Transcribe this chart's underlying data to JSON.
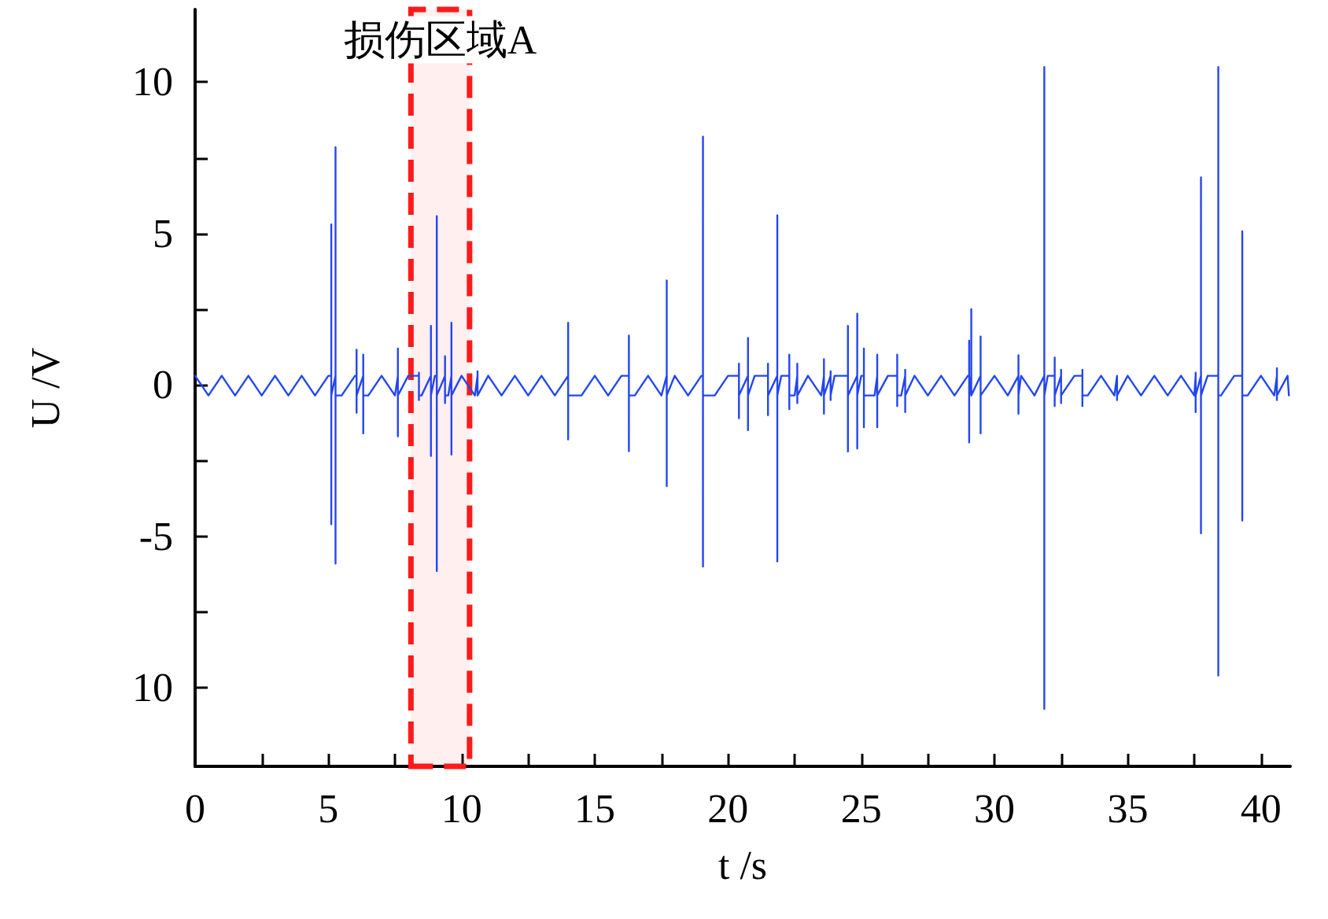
{
  "chart_data": {
    "type": "line",
    "xlabel": "t /s",
    "ylabel": "U /V",
    "x": [
      0,
      0.5,
      1,
      1.5,
      2,
      2.5,
      3,
      3.5,
      4,
      4.5,
      5,
      5.11,
      5.11,
      5.11,
      5.11,
      5.27,
      5.27,
      5.27,
      5.27,
      5.5,
      6,
      6.06,
      6.06,
      6.06,
      6.06,
      6.31,
      6.31,
      6.31,
      6.31,
      6.5,
      7,
      7.5,
      7.61,
      7.61,
      7.61,
      7.61,
      8,
      8.4,
      8.4,
      8.4,
      8.4,
      8.5,
      8.85,
      8.85,
      8.85,
      8.85,
      9,
      9.07,
      9.07,
      9.07,
      9.07,
      9.38,
      9.38,
      9.38,
      9.38,
      9.5,
      9.62,
      9.62,
      9.62,
      9.62,
      10,
      10.5,
      10.6,
      10.6,
      10.6,
      11,
      11.5,
      12,
      12.5,
      13,
      13.5,
      14,
      14,
      14,
      14,
      14.5,
      15,
      15.5,
      16,
      16.28,
      16.28,
      16.28,
      16.28,
      16.5,
      17,
      17.5,
      17.7,
      17.7,
      17.7,
      17.7,
      18,
      18.5,
      19,
      19.06,
      19.06,
      19.06,
      19.06,
      19.5,
      20,
      20.41,
      20.41,
      20.41,
      20.41,
      20.75,
      20.75,
      20.75,
      20.75,
      21,
      21.5,
      21.5,
      21.5,
      21.5,
      21.85,
      21.85,
      21.85,
      21.85,
      22,
      22.3,
      22.3,
      22.3,
      22.3,
      22.5,
      22.6,
      22.6,
      22.6,
      22.6,
      23,
      23.5,
      23.6,
      23.6,
      23.6,
      23.6,
      23.85,
      23.85,
      23.85,
      23.85,
      24,
      24.5,
      24.5,
      24.5,
      24.5,
      24.85,
      24.85,
      24.85,
      24.85,
      25,
      25.1,
      25.1,
      25.1,
      25.1,
      25.5,
      25.6,
      25.6,
      25.6,
      25.6,
      26,
      26.35,
      26.35,
      26.35,
      26.35,
      26.5,
      26.65,
      26.65,
      26.65,
      26.65,
      27,
      27.5,
      28,
      28.5,
      29,
      29.05,
      29.05,
      29.05,
      29.05,
      29.13,
      29.13,
      29.13,
      29.48,
      29.48,
      29.48,
      29.48,
      29.5,
      30,
      30.5,
      30.9,
      30.9,
      30.9,
      30.9,
      31,
      31.5,
      31.87,
      31.87,
      31.87,
      31.87,
      32,
      32.26,
      32.26,
      32.26,
      32.26,
      32.5,
      32.5,
      32.5,
      32.5,
      33,
      33.3,
      33.3,
      33.3,
      33.3,
      33.5,
      34,
      34.5,
      34.6,
      34.6,
      34.6,
      35,
      35.5,
      36,
      36.5,
      37,
      37.5,
      37.55,
      37.55,
      37.55,
      37.55,
      37.75,
      37.75,
      37.75,
      37.75,
      38,
      38.4,
      38.4,
      38.4,
      38.4,
      38.5,
      39,
      39.3,
      39.3,
      39.3,
      39.3,
      39.5,
      40,
      40.5,
      40.6,
      40.6,
      40.6,
      40.6,
      41,
      41.05
    ],
    "series": [
      {
        "color": "#2346f0",
        "values": [
          0.3,
          -0.35,
          0.3,
          -0.35,
          0.3,
          -0.35,
          0.3,
          -0.35,
          0.3,
          -0.35,
          0.3,
          0.3,
          5.3,
          -4.6,
          -0.35,
          0.3,
          7.85,
          -5.9,
          -0.35,
          -0.35,
          0.3,
          0.3,
          1.16,
          -0.92,
          -0.35,
          0.3,
          1.0,
          -1.6,
          -0.35,
          -0.35,
          0.3,
          -0.35,
          0.3,
          1.2,
          -1.7,
          -0.35,
          0.3,
          0.3,
          0.4,
          -0.5,
          -0.35,
          -0.35,
          0.3,
          1.95,
          -2.35,
          -0.35,
          0.3,
          0.3,
          5.57,
          -6.15,
          -0.35,
          0.3,
          0.95,
          -0.6,
          -0.35,
          -0.35,
          0.3,
          2.05,
          -2.3,
          -0.35,
          0.3,
          -0.35,
          0.3,
          0.45,
          -0.35,
          0.3,
          -0.35,
          0.3,
          -0.35,
          0.3,
          -0.35,
          0.3,
          2.05,
          -1.8,
          -0.35,
          -0.35,
          0.3,
          -0.35,
          0.3,
          0.3,
          1.63,
          -2.19,
          -0.35,
          -0.35,
          0.3,
          -0.35,
          0.3,
          3.45,
          -3.34,
          -0.35,
          0.3,
          -0.35,
          0.3,
          0.3,
          8.2,
          -6.0,
          -0.35,
          -0.35,
          0.3,
          0.3,
          0.7,
          -1.1,
          -0.35,
          0.3,
          1.55,
          -1.5,
          -0.35,
          0.3,
          0.3,
          0.7,
          -1.0,
          -0.35,
          0.3,
          5.6,
          -5.83,
          -0.35,
          0.3,
          0.3,
          1.0,
          -0.8,
          -0.35,
          -0.35,
          0.3,
          0.7,
          -0.6,
          -0.35,
          0.3,
          -0.35,
          0.3,
          0.85,
          -0.95,
          -0.35,
          0.3,
          0.45,
          -0.5,
          -0.35,
          0.3,
          0.3,
          1.95,
          -2.2,
          -0.35,
          0.3,
          2.35,
          -2.1,
          -0.35,
          0.3,
          0.3,
          1.2,
          -1.4,
          -0.35,
          -0.35,
          0.3,
          1.0,
          -1.4,
          -0.35,
          0.3,
          0.3,
          1.0,
          -0.7,
          -0.35,
          -0.35,
          0.3,
          0.5,
          -0.9,
          -0.35,
          0.3,
          -0.35,
          0.3,
          -0.35,
          0.3,
          0.3,
          1.46,
          -1.9,
          -0.35,
          0.3,
          2.5,
          -0.35,
          0.3,
          1.6,
          -1.6,
          -0.35,
          -0.35,
          0.3,
          -0.35,
          0.3,
          0.98,
          -0.95,
          -0.35,
          0.3,
          -0.35,
          0.3,
          10.5,
          -10.7,
          -0.35,
          0.3,
          0.3,
          0.9,
          -0.7,
          -0.35,
          0.3,
          0.5,
          -0.6,
          -0.35,
          0.3,
          0.3,
          0.5,
          -0.7,
          -0.35,
          -0.35,
          0.3,
          -0.35,
          0.3,
          -0.5,
          -0.35,
          0.3,
          -0.35,
          0.3,
          -0.35,
          0.3,
          -0.35,
          0.3,
          0.4,
          -0.9,
          -0.35,
          0.3,
          6.85,
          -4.9,
          -0.35,
          0.3,
          0.3,
          10.5,
          -9.6,
          -0.35,
          -0.35,
          0.3,
          0.3,
          5.07,
          -4.48,
          -0.35,
          -0.35,
          0.3,
          -0.35,
          0.3,
          0.55,
          -0.5,
          -0.35,
          0.3,
          -0.35
        ]
      }
    ],
    "xlim": [
      0,
      41.1
    ],
    "xticks": [
      0,
      {
        "value": 2.5,
        "label": null
      },
      5,
      {
        "value": 7.5,
        "label": null
      },
      10,
      {
        "value": 12.5,
        "label": null
      },
      15,
      {
        "value": 17.5,
        "label": null
      },
      20,
      {
        "value": 22.5,
        "label": null
      },
      25,
      {
        "value": 27.5,
        "label": null
      },
      30,
      {
        "value": 32.5,
        "label": null
      },
      35,
      {
        "value": 37.5,
        "label": null
      },
      40
    ],
    "ylim": [
      -12.6,
      12.4
    ],
    "yticks": [
      {
        "value": -10,
        "label": "10"
      },
      {
        "value": -7.5,
        "label": null
      },
      -5,
      {
        "value": -2.5,
        "label": null
      },
      0,
      {
        "value": 2.5,
        "label": null
      },
      5,
      {
        "value": 7.5,
        "label": null
      },
      10
    ],
    "bands": [
      {
        "axis": "x",
        "from": 8.1,
        "to": 10.3,
        "label": "损伤区域A",
        "color": "#ff1a1a"
      }
    ],
    "grid": false,
    "marker": "none",
    "line_style": "solid"
  }
}
